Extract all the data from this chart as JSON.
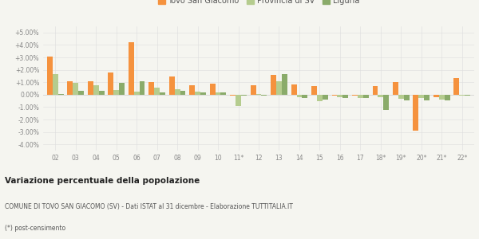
{
  "categories": [
    "02",
    "03",
    "04",
    "05",
    "06",
    "07",
    "08",
    "09",
    "10",
    "11*",
    "12",
    "13",
    "14",
    "15",
    "16",
    "17",
    "18*",
    "19*",
    "20*",
    "21*",
    "22*"
  ],
  "tovo": [
    3.05,
    1.05,
    1.1,
    1.8,
    4.2,
    1.0,
    1.45,
    0.75,
    0.9,
    -0.1,
    0.75,
    1.6,
    0.85,
    0.7,
    -0.05,
    -0.1,
    0.7,
    1.0,
    -2.9,
    -0.2,
    1.35
  ],
  "provincia": [
    1.65,
    0.95,
    0.75,
    0.35,
    0.25,
    0.55,
    0.45,
    0.25,
    0.2,
    -0.9,
    0.05,
    1.1,
    -0.2,
    -0.55,
    -0.2,
    -0.25,
    -0.2,
    -0.35,
    -0.25,
    -0.4,
    -0.05
  ],
  "liguria": [
    0.05,
    0.3,
    0.3,
    0.95,
    1.1,
    0.2,
    0.3,
    0.2,
    0.15,
    -0.1,
    -0.05,
    1.65,
    -0.25,
    -0.4,
    -0.25,
    -0.3,
    -1.2,
    -0.45,
    -0.45,
    -0.45,
    -0.05
  ],
  "color_tovo": "#f5923e",
  "color_provincia": "#b5cc8e",
  "color_liguria": "#8aab6a",
  "title": "Variazione percentuale della popolazione",
  "subtitle": "COMUNE DI TOVO SAN GIACOMO (SV) - Dati ISTAT al 31 dicembre - Elaborazione TUTTITALIA.IT",
  "footnote": "(*) post-censimento",
  "ylim": [
    -4.5,
    5.5
  ],
  "yticks": [
    -4.0,
    -3.0,
    -2.0,
    -1.0,
    0.0,
    1.0,
    2.0,
    3.0,
    4.0,
    5.0
  ],
  "bg_color": "#f5f5f0",
  "legend_labels": [
    "Tovo San Giacomo",
    "Provincia di SV",
    "Liguria"
  ]
}
